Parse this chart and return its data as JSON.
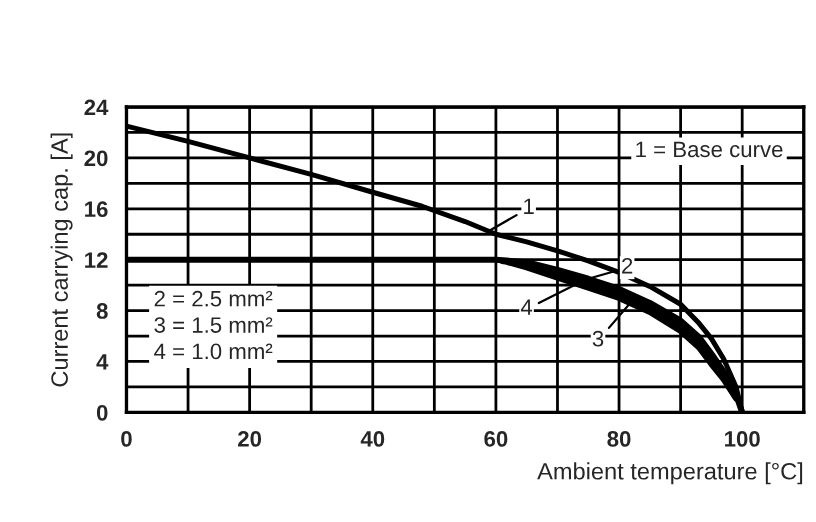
{
  "chart_data": {
    "type": "line",
    "xlabel": "Ambient temperature [°C]",
    "ylabel": "Current carrying cap. [A]",
    "series": [
      {
        "color": "#000000",
        "x": [
          0,
          10,
          20,
          30,
          40,
          48,
          55,
          60,
          65,
          70,
          75,
          80,
          85,
          90,
          93,
          95,
          97,
          99,
          100
        ],
        "values": [
          22.5,
          21.3,
          20.0,
          18.7,
          17.3,
          16.2,
          15.0,
          14.0,
          13.4,
          12.7,
          11.9,
          11.0,
          9.9,
          8.5,
          7.0,
          5.8,
          4.2,
          2.0,
          0
        ]
      },
      {
        "color": "#000000",
        "x": [
          0,
          60,
          65,
          70,
          75,
          80,
          85,
          90,
          93,
          95,
          97,
          99,
          100
        ],
        "values": [
          12,
          12,
          11.8,
          11.2,
          10.5,
          9.7,
          8.6,
          7.2,
          5.9,
          4.6,
          3.2,
          1.4,
          0
        ]
      },
      {
        "color": "#000000",
        "x": [
          62,
          65,
          70,
          75,
          80,
          85,
          90,
          93,
          95,
          97,
          99
        ],
        "values": [
          11.8,
          11.4,
          10.6,
          9.8,
          9.0,
          7.9,
          6.4,
          5.1,
          3.8,
          2.6,
          1.1
        ]
      },
      {
        "color": "#000000",
        "x": [
          61,
          65,
          70,
          75,
          80,
          85,
          90,
          93,
          95,
          97,
          99
        ],
        "values": [
          11.9,
          11.6,
          10.9,
          10.1,
          9.3,
          8.2,
          6.8,
          5.5,
          4.2,
          2.9,
          1.2
        ]
      }
    ],
    "xlim": [
      0,
      110
    ],
    "ylim": [
      0,
      24
    ],
    "xticks": [
      0,
      {
        "value": 10,
        "label": null
      },
      20,
      {
        "value": 30,
        "label": null
      },
      40,
      {
        "value": 50,
        "label": null
      },
      60,
      {
        "value": 70,
        "label": null
      },
      80,
      {
        "value": 90,
        "label": null
      },
      100
    ],
    "yticks": [
      0,
      {
        "value": 2,
        "label": null
      },
      4,
      {
        "value": 6,
        "label": null
      },
      8,
      {
        "value": 10,
        "label": null
      },
      12,
      {
        "value": 14,
        "label": null
      },
      16,
      {
        "value": 18,
        "label": null
      },
      20,
      {
        "value": 22,
        "label": null
      },
      24
    ],
    "grid": true,
    "marker": "none",
    "line_style": "solid",
    "annotations": [
      {
        "text": "1",
        "x": 59,
        "y": 14.3
      },
      {
        "text": "2",
        "x": 75,
        "y": 10.5
      },
      {
        "text": "3",
        "x": 82,
        "y": 8.7
      },
      {
        "text": "4",
        "x": 74,
        "y": 10.3
      },
      "1 = Base curve",
      "2 = 2.5 mm²",
      "3 = 1.5 mm²",
      "4 = 1.0 mm²"
    ]
  }
}
